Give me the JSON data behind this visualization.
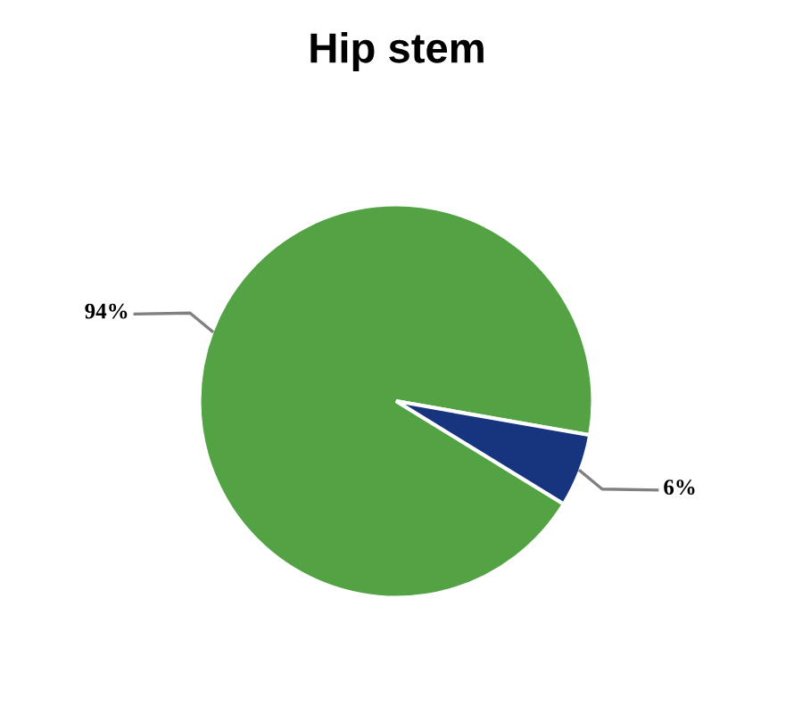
{
  "chart_data": {
    "type": "pie",
    "title": "Hip stem",
    "categories": [
      null,
      null
    ],
    "values": [
      94,
      6
    ],
    "colors": [
      "#53a244",
      "#17357f"
    ],
    "value_labels": [
      "94%",
      "6%"
    ]
  }
}
